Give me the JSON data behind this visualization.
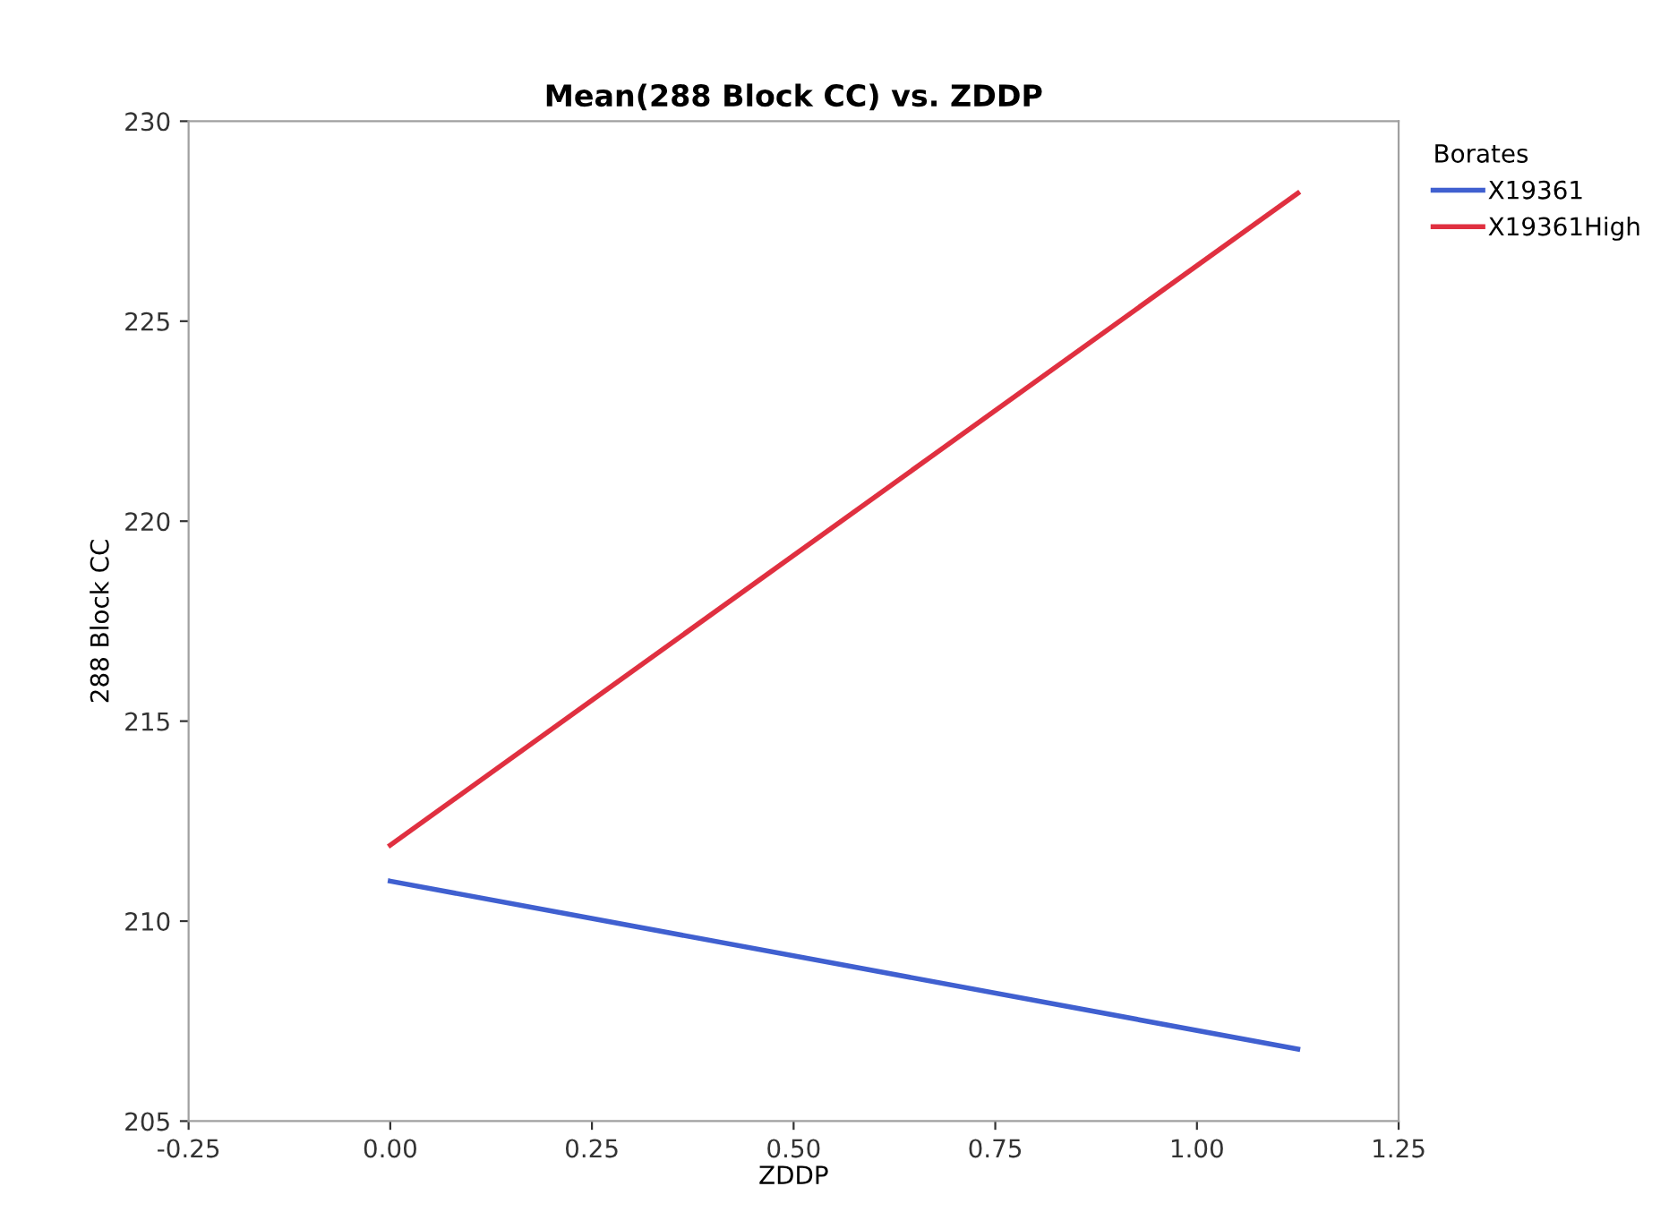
{
  "chart_data": {
    "type": "line",
    "title": "Mean(288 Block CC) vs. ZDDP",
    "xlabel": "ZDDP",
    "ylabel": "288 Block CC",
    "legend_title": "Borates",
    "series": [
      {
        "name": "X19361",
        "color": "#4060d0",
        "values": [
          211.0,
          206.8
        ]
      },
      {
        "name": "X19361High",
        "color": "#e03040",
        "values": [
          211.9,
          228.2
        ]
      }
    ],
    "x": [
      0.0,
      1.125
    ],
    "xlim": [
      -0.25,
      1.25
    ],
    "xticks": [
      {
        "value": -0.25,
        "label": "-0.25"
      },
      {
        "value": 0,
        "label": "0.00"
      },
      {
        "value": 0.25,
        "label": "0.25"
      },
      {
        "value": 0.5,
        "label": "0.50"
      },
      {
        "value": 0.75,
        "label": "0.75"
      },
      {
        "value": 1.0,
        "label": "1.00"
      },
      {
        "value": 1.25,
        "label": "1.25"
      }
    ],
    "ylim": [
      205,
      230
    ],
    "yticks": [
      205,
      210,
      215,
      220,
      225,
      230
    ],
    "grid": false,
    "legend": "top right",
    "marker": "none",
    "line_style": "solid"
  }
}
